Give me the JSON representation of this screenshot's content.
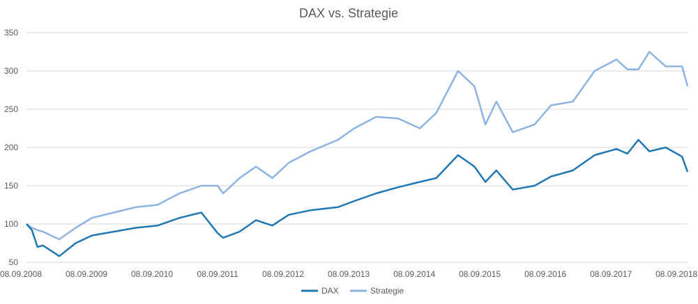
{
  "chart_data": {
    "type": "line",
    "title": "DAX vs. Strategie",
    "xlabel": "",
    "ylabel": "",
    "ylim": [
      50,
      350
    ],
    "yticks": [
      "350",
      "300",
      "250",
      "200",
      "150",
      "100",
      "50"
    ],
    "xticks": [
      "08.09.2008",
      "08.09.2009",
      "08.09.2010",
      "08.09.2011",
      "08.09.2012",
      "08.09.2013",
      "08.09.2014",
      "08.09.2015",
      "08.09.2016",
      "08.09.2017",
      "08.09.2018"
    ],
    "grid": true,
    "legend_position": "bottom",
    "x": [
      "2008-09",
      "2008-10",
      "2008-11",
      "2008-12",
      "2009-03",
      "2009-06",
      "2009-09",
      "2010-01",
      "2010-05",
      "2010-09",
      "2011-01",
      "2011-05",
      "2011-08",
      "2011-09",
      "2011-12",
      "2012-03",
      "2012-06",
      "2012-09",
      "2013-01",
      "2013-06",
      "2013-09",
      "2014-01",
      "2014-05",
      "2014-09",
      "2014-12",
      "2015-04",
      "2015-07",
      "2015-09",
      "2015-11",
      "2016-02",
      "2016-06",
      "2016-09",
      "2017-01",
      "2017-05",
      "2017-09",
      "2017-11",
      "2018-01",
      "2018-03",
      "2018-06",
      "2018-09",
      "2018-10"
    ],
    "series": [
      {
        "name": "DAX",
        "color": "#1f77b4",
        "values": [
          100,
          92,
          70,
          72,
          58,
          75,
          85,
          90,
          95,
          98,
          108,
          115,
          88,
          82,
          90,
          105,
          98,
          112,
          118,
          122,
          130,
          140,
          148,
          155,
          160,
          190,
          175,
          155,
          170,
          145,
          150,
          162,
          170,
          190,
          198,
          192,
          210,
          195,
          200,
          188,
          168
        ]
      },
      {
        "name": "Strategie",
        "color": "#8db3e2",
        "values": [
          100,
          95,
          92,
          90,
          80,
          95,
          108,
          115,
          122,
          125,
          140,
          150,
          150,
          140,
          160,
          175,
          160,
          180,
          195,
          210,
          225,
          240,
          238,
          225,
          245,
          300,
          280,
          230,
          260,
          220,
          230,
          255,
          260,
          300,
          315,
          302,
          302,
          325,
          306,
          306,
          280
        ]
      }
    ]
  }
}
